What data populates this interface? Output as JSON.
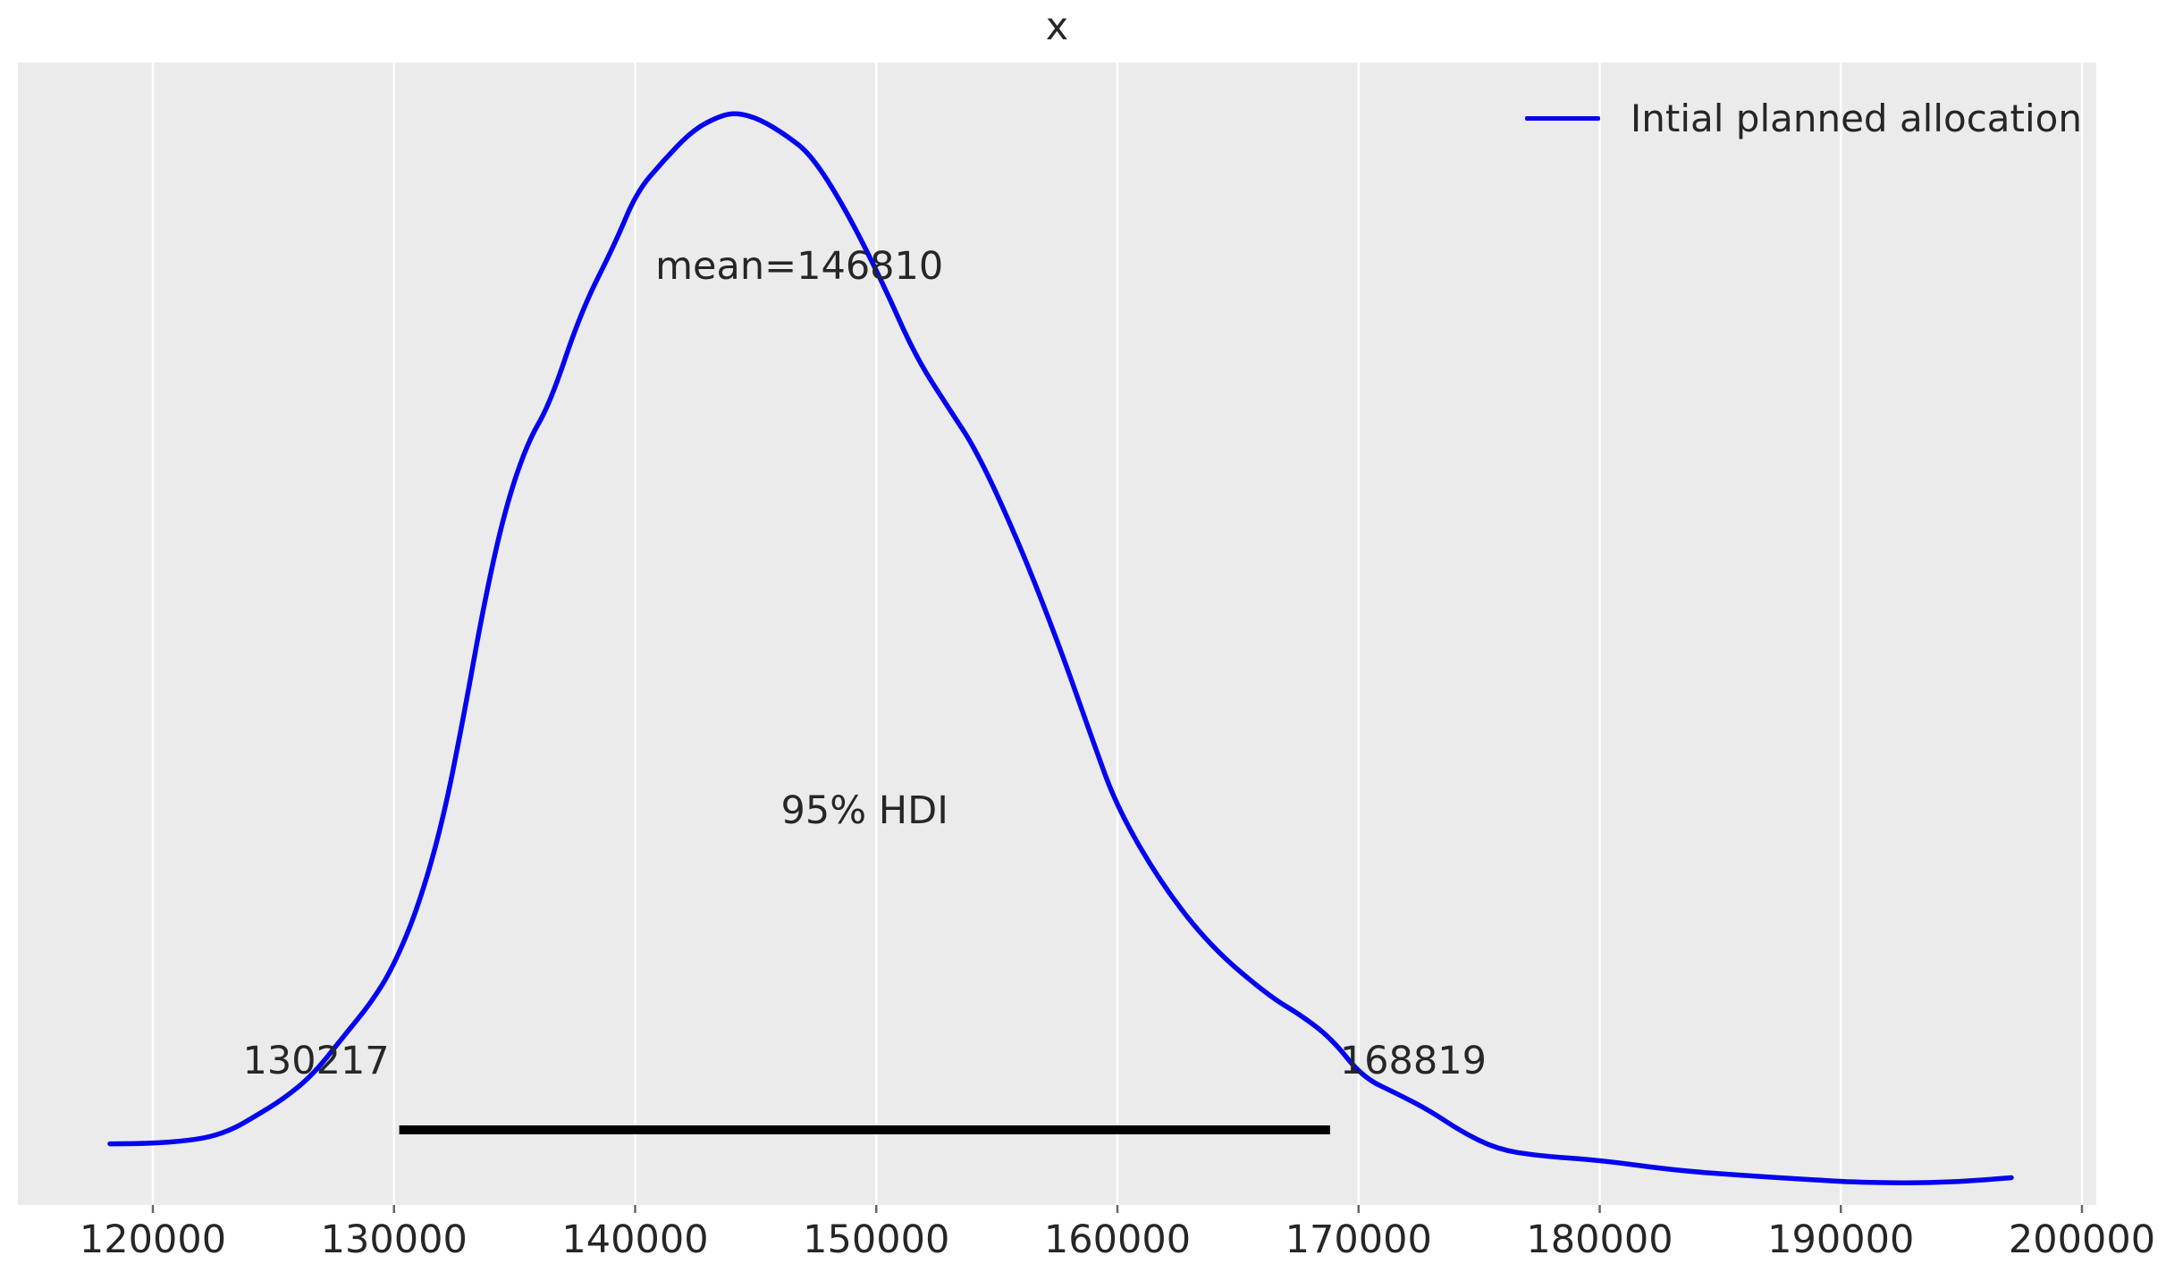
{
  "title": "x",
  "legend": {
    "label": "Intial planned allocation"
  },
  "colors": {
    "curve": "#0404ee",
    "plot_bg": "#ebebeb",
    "grid": "#ffffff",
    "tick_mark": "#666666",
    "hdi_line": "#000000",
    "text": "#262626"
  },
  "chart_data": {
    "type": "line",
    "subtype": "kde-posterior",
    "title": "x",
    "xlabel": "",
    "ylabel": "",
    "legend_entries": [
      "Intial planned allocation"
    ],
    "legend_position": "upper right",
    "grid": "vertical-white-on-gray",
    "xlim": [
      114400,
      200600
    ],
    "ylim_density": [
      0,
      1
    ],
    "x_ticks": [
      "120000",
      "130000",
      "140000",
      "150000",
      "160000",
      "170000",
      "180000",
      "190000",
      "200000"
    ],
    "x_tick_values": [
      120000,
      130000,
      140000,
      150000,
      160000,
      170000,
      180000,
      190000,
      200000
    ],
    "annotations": {
      "mean_label": "mean=146810",
      "mean_value": 146810,
      "hdi_label": "95% HDI",
      "hdi_mass": "95%",
      "hdi_lower": 130217,
      "hdi_upper": 168819
    },
    "curve": [
      [
        118221,
        0.056
      ],
      [
        119592,
        0.056
      ],
      [
        121075,
        0.058
      ],
      [
        122372,
        0.062
      ],
      [
        123373,
        0.07
      ],
      [
        124152,
        0.08
      ],
      [
        125412,
        0.097
      ],
      [
        126636,
        0.119
      ],
      [
        127933,
        0.155
      ],
      [
        129045,
        0.185
      ],
      [
        129972,
        0.218
      ],
      [
        131010,
        0.273
      ],
      [
        132011,
        0.35
      ],
      [
        132864,
        0.444
      ],
      [
        133753,
        0.553
      ],
      [
        134606,
        0.637
      ],
      [
        135533,
        0.698
      ],
      [
        136460,
        0.733
      ],
      [
        137757,
        0.818
      ],
      [
        139166,
        0.88
      ],
      [
        140055,
        0.927
      ],
      [
        141167,
        0.956
      ],
      [
        142391,
        0.984
      ],
      [
        143503,
        0.997
      ],
      [
        144244,
        1.0
      ],
      [
        145171,
        0.994
      ],
      [
        146209,
        0.98
      ],
      [
        147284,
        0.962
      ],
      [
        148693,
        0.913
      ],
      [
        150250,
        0.845
      ],
      [
        151621,
        0.777
      ],
      [
        152956,
        0.731
      ],
      [
        154179,
        0.69
      ],
      [
        155921,
        0.606
      ],
      [
        157590,
        0.512
      ],
      [
        158962,
        0.426
      ],
      [
        160000,
        0.363
      ],
      [
        161853,
        0.293
      ],
      [
        163892,
        0.236
      ],
      [
        166302,
        0.191
      ],
      [
        167600,
        0.174
      ],
      [
        168897,
        0.152
      ],
      [
        170158,
        0.117
      ],
      [
        171678,
        0.101
      ],
      [
        172975,
        0.086
      ],
      [
        174273,
        0.067
      ],
      [
        175756,
        0.051
      ],
      [
        177424,
        0.045
      ],
      [
        180019,
        0.041
      ],
      [
        182985,
        0.032
      ],
      [
        185950,
        0.027
      ],
      [
        188916,
        0.023
      ],
      [
        190399,
        0.021
      ],
      [
        192623,
        0.02
      ],
      [
        194848,
        0.021
      ],
      [
        197072,
        0.025
      ]
    ]
  }
}
